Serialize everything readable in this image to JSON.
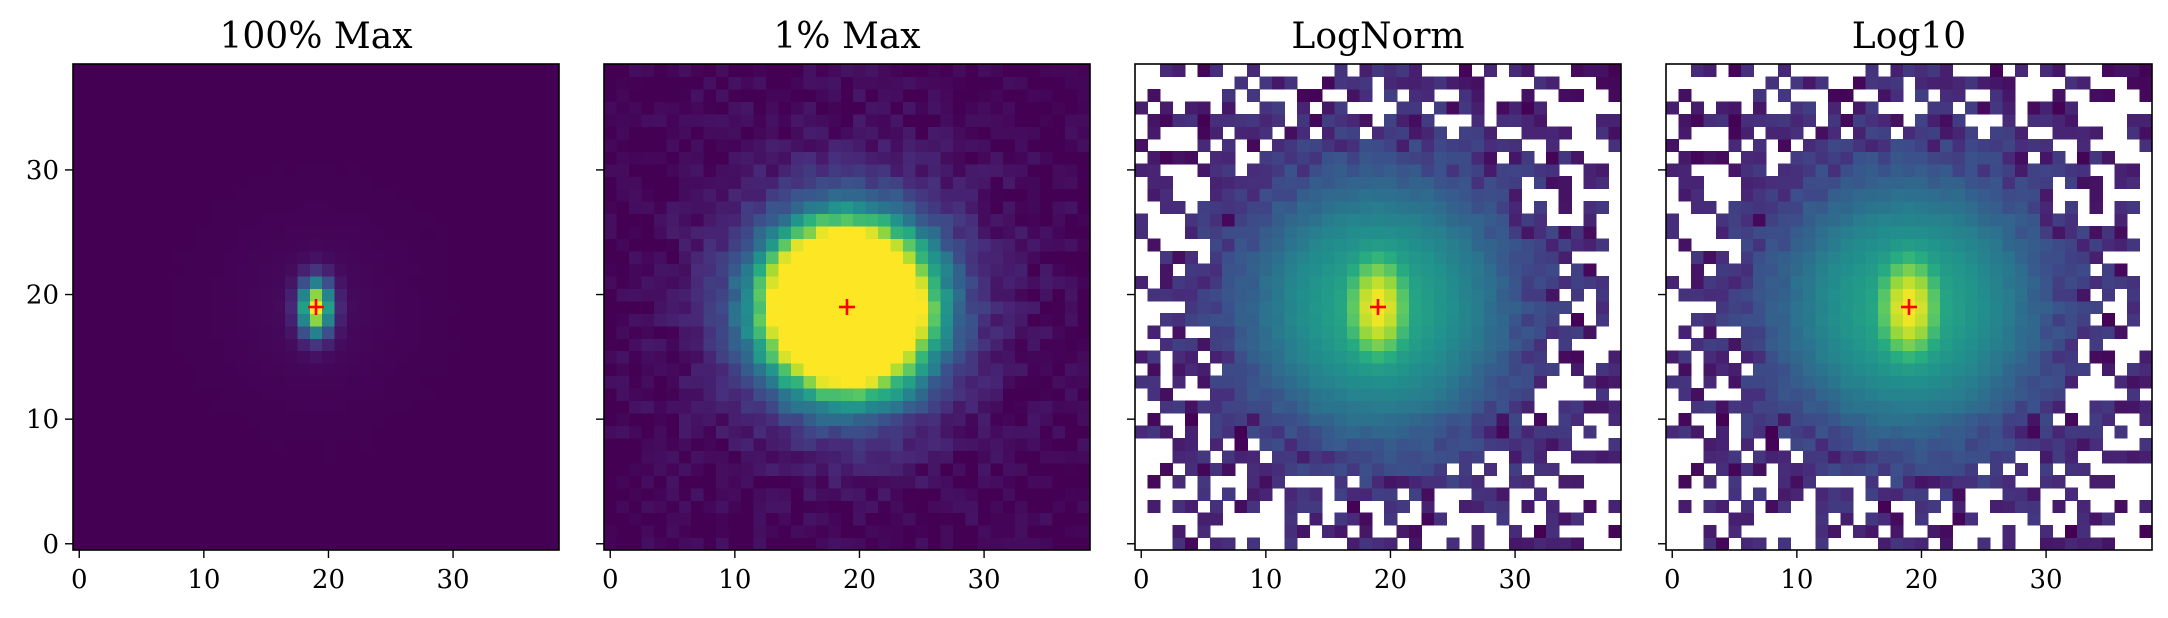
{
  "chart_data": [
    {
      "type": "heatmap",
      "title": "100% Max",
      "colormap": "viridis",
      "scale": "linear",
      "clip": 1.0,
      "mask_below": null,
      "xlim": [
        -0.5,
        38.5
      ],
      "ylim": [
        -0.5,
        38.5
      ],
      "xticks": [
        0,
        10,
        20,
        30
      ],
      "yticks": [
        0,
        10,
        20,
        30
      ],
      "ytick_labels_visible": true,
      "marker": {
        "x": 19,
        "y": 19,
        "symbol": "+",
        "color": "#ff0000"
      }
    },
    {
      "type": "heatmap",
      "title": "1% Max",
      "colormap": "viridis",
      "scale": "linear",
      "clip": 0.01,
      "mask_below": null,
      "xlim": [
        -0.5,
        38.5
      ],
      "ylim": [
        -0.5,
        38.5
      ],
      "xticks": [
        0,
        10,
        20,
        30
      ],
      "yticks": [
        0,
        10,
        20,
        30
      ],
      "ytick_labels_visible": false,
      "marker": {
        "x": 19,
        "y": 19,
        "symbol": "+",
        "color": "#ff0000"
      }
    },
    {
      "type": "heatmap",
      "title": "LogNorm",
      "colormap": "viridis",
      "scale": "log",
      "clip": 1.0,
      "mask_below": 0.00012,
      "xlim": [
        -0.5,
        38.5
      ],
      "ylim": [
        -0.5,
        38.5
      ],
      "xticks": [
        0,
        10,
        20,
        30
      ],
      "yticks": [
        0,
        10,
        20,
        30
      ],
      "ytick_labels_visible": false,
      "marker": {
        "x": 19,
        "y": 19,
        "symbol": "+",
        "color": "#ff0000"
      }
    },
    {
      "type": "heatmap",
      "title": "Log10",
      "colormap": "viridis",
      "scale": "log10",
      "clip": 1.0,
      "mask_below": 0.00012,
      "xlim": [
        -0.5,
        38.5
      ],
      "ylim": [
        -0.5,
        38.5
      ],
      "xticks": [
        0,
        10,
        20,
        30
      ],
      "yticks": [
        0,
        10,
        20,
        30
      ],
      "ytick_labels_visible": false,
      "marker": {
        "x": 19,
        "y": 19,
        "symbol": "+",
        "color": "#ff0000"
      }
    }
  ],
  "image_data": {
    "grid_size": 39,
    "peak": {
      "x": 19,
      "y": 19,
      "value": 1.0
    },
    "noise_seed": 7
  }
}
